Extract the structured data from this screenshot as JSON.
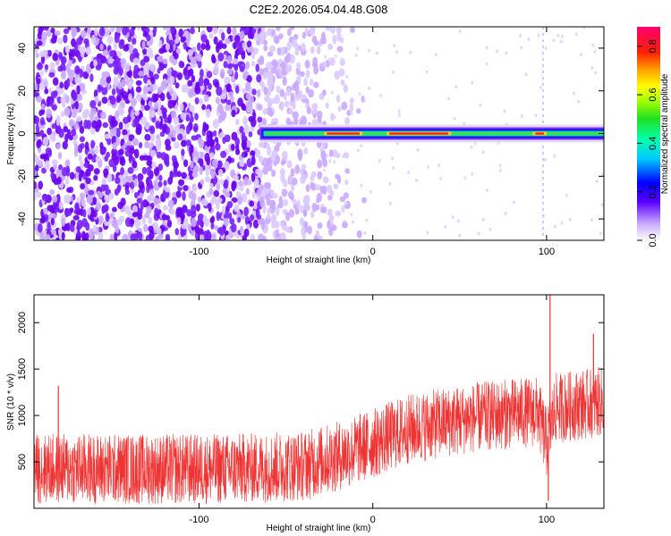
{
  "title": "C2E2.2026.054.04.48.G08",
  "chart_data": [
    {
      "type": "heatmap",
      "xlabel": "Height of straight line (km)",
      "ylabel": "Frequency (Hz)",
      "xlim": [
        -195,
        133
      ],
      "ylim": [
        -50,
        50
      ],
      "x_ticks": [
        -100,
        0,
        100
      ],
      "x_tick_labels": [
        "-100",
        "0",
        "100"
      ],
      "y_ticks": [
        -40,
        -20,
        0,
        20,
        40
      ],
      "y_tick_labels": [
        "-40",
        "-20",
        "0",
        "20",
        "40"
      ],
      "colorbar": {
        "label": "Normalized spectral amplitude",
        "range": [
          0,
          0.88
        ],
        "ticks": [
          0,
          0.2,
          0.4,
          0.6,
          0.8
        ],
        "tick_labels": [
          "0.0",
          "0.2",
          "0.4",
          "0.6",
          "0.8"
        ]
      },
      "signal_trace": {
        "frequency_hz": 0,
        "x_range": [
          -65,
          133
        ],
        "peak_amplitude": 0.85,
        "peak_segments": [
          [
            -28,
            -6
          ],
          [
            8,
            45
          ],
          [
            92,
            100
          ]
        ]
      },
      "noise_region": {
        "x_range": [
          -195,
          -30
        ]
      },
      "vertical_artifact_x": 98,
      "grid": false,
      "legend": "none"
    },
    {
      "type": "line",
      "xlabel": "Height of straight line (km)",
      "ylabel": "SNR (10 * v/v)",
      "xlim": [
        -195,
        133
      ],
      "ylim": [
        0,
        2300
      ],
      "x_ticks": [
        -100,
        0,
        100
      ],
      "x_tick_labels": [
        "-100",
        "0",
        "100"
      ],
      "y_ticks": [
        500,
        1000,
        1500,
        2000
      ],
      "y_tick_labels": [
        "500",
        "1000",
        "1500",
        "2000"
      ],
      "series": [
        {
          "color": "#ee3333",
          "trend_x": [
            -195,
            -100,
            -60,
            -40,
            -20,
            0,
            20,
            40,
            60,
            80,
            95,
            100,
            105,
            133
          ],
          "trend_y": [
            430,
            420,
            440,
            460,
            560,
            700,
            850,
            920,
            980,
            1020,
            1040,
            700,
            1080,
            1150
          ],
          "noise_amplitude": 380,
          "spikes": [
            {
              "x": 102,
              "y": 2300
            },
            {
              "x": 101,
              "y": 80
            },
            {
              "x": -181,
              "y": 1320
            },
            {
              "x": 127,
              "y": 1880
            }
          ]
        }
      ],
      "grid": false,
      "legend": "none"
    }
  ]
}
